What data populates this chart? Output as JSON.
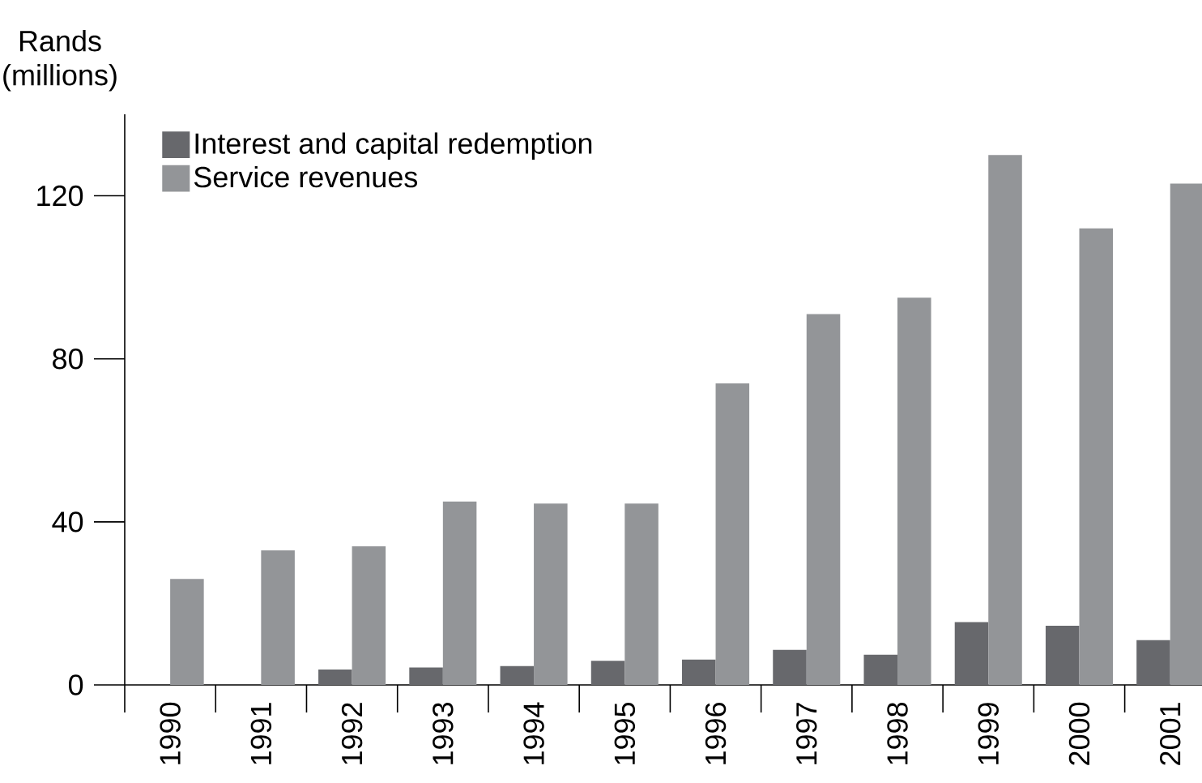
{
  "chart_data": {
    "type": "bar",
    "ylabel": "Rands (millions)",
    "categories": [
      "1990",
      "1991",
      "1992",
      "1993",
      "1994",
      "1995",
      "1996",
      "1997",
      "1998",
      "1999",
      "2000",
      "2001"
    ],
    "series": [
      {
        "name": "Interest and capital redemption",
        "color": "#67686c",
        "values": [
          null,
          null,
          3.8,
          4.3,
          4.6,
          5.9,
          6.2,
          8.6,
          7.4,
          15.4,
          14.5,
          11
        ]
      },
      {
        "name": "Service revenues",
        "color": "#939598",
        "values": [
          26,
          33,
          34,
          45,
          44.5,
          44.5,
          74,
          91,
          95,
          130,
          112,
          123
        ]
      }
    ],
    "ylim": [
      0,
      140
    ],
    "yticks": [
      0,
      40,
      80,
      120
    ],
    "grid": false,
    "legend": "top left"
  }
}
